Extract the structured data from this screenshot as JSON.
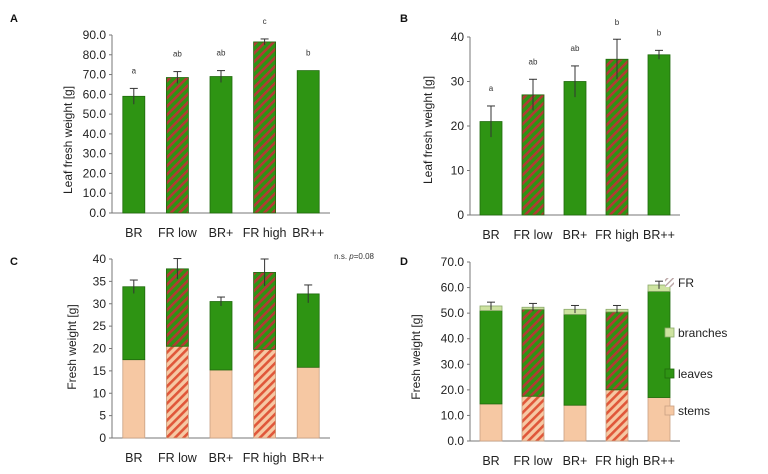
{
  "colors": {
    "green": "#2e9413",
    "green_edge": "#1f6a0c",
    "hatch_red": "#b23a34",
    "stems": "#f6c8a3",
    "stems_edge": "#c9a083",
    "stems_hatch": "#e0573a",
    "branches": "#cde3a0",
    "branches_edge": "#8aa86a"
  },
  "chart_data": [
    {
      "panel": "A",
      "type": "bar",
      "ylabel": "Leaf  fresh weight [g]",
      "ylim": [
        0,
        90
      ],
      "yticks": [
        "0.0",
        "10.0",
        "20.0",
        "30.0",
        "40.0",
        "50.0",
        "60.0",
        "70.0",
        "80.0",
        "90.0"
      ],
      "categories": [
        "BR",
        "FR low",
        "BR+",
        "FR high",
        "BR++"
      ],
      "values": [
        59,
        68.5,
        69,
        86.5,
        72
      ],
      "errors": [
        4,
        3,
        3,
        1.5,
        0
      ],
      "hatched": [
        false,
        true,
        false,
        true,
        false
      ],
      "significance": [
        "a",
        "ab",
        "ab",
        "c",
        "b"
      ]
    },
    {
      "panel": "B",
      "type": "bar",
      "ylabel": "Leaf fresh weight [g]",
      "ylim": [
        0,
        40
      ],
      "yticks": [
        "0",
        "10",
        "20",
        "30",
        "40"
      ],
      "categories": [
        "BR",
        "FR low",
        "BR+",
        "FR high",
        "BR++"
      ],
      "values": [
        21,
        27,
        30,
        35,
        36
      ],
      "errors": [
        3.5,
        3.5,
        3.5,
        4.5,
        1
      ],
      "hatched": [
        false,
        true,
        false,
        true,
        false
      ],
      "significance": [
        "a",
        "ab",
        "ab",
        "b",
        "b"
      ]
    },
    {
      "panel": "C",
      "type": "stacked-bar",
      "ylabel": "Fresh weight [g]",
      "ylim": [
        0,
        40
      ],
      "yticks": [
        "0",
        "5",
        "10",
        "15",
        "20",
        "25",
        "30",
        "35",
        "40"
      ],
      "categories": [
        "BR",
        "FR low",
        "BR+",
        "FR high",
        "BR++"
      ],
      "series": [
        {
          "name": "stems",
          "values": [
            17.5,
            20.5,
            15.2,
            19.8,
            15.8
          ]
        },
        {
          "name": "leaves",
          "values": [
            16.3,
            17.3,
            15.3,
            17.2,
            16.4
          ]
        }
      ],
      "errors": [
        1.5,
        2.3,
        1,
        3,
        2
      ],
      "hatched": [
        false,
        true,
        false,
        true,
        false
      ],
      "annotation": "n.s. p=0.08"
    },
    {
      "panel": "D",
      "type": "stacked-bar",
      "ylabel": "Fresh weight [g]",
      "ylim": [
        0,
        70
      ],
      "yticks": [
        "0.0",
        "10.0",
        "20.0",
        "30.0",
        "40.0",
        "50.0",
        "60.0",
        "70.0"
      ],
      "categories": [
        "BR",
        "FR low",
        "BR+",
        "FR high",
        "BR++"
      ],
      "series": [
        {
          "name": "stems",
          "values": [
            14.5,
            17.5,
            14,
            20,
            17
          ]
        },
        {
          "name": "leaves",
          "values": [
            36.5,
            34,
            35.5,
            30.5,
            41.5
          ]
        },
        {
          "name": "branches",
          "values": [
            1.8,
            0.8,
            2,
            1,
            2.5
          ]
        }
      ],
      "errors": [
        1.5,
        1.5,
        1.5,
        1.5,
        1.5
      ],
      "hatched": [
        false,
        true,
        false,
        true,
        false
      ],
      "legend": [
        "FR",
        "branches",
        "leaves",
        "stems"
      ]
    }
  ]
}
